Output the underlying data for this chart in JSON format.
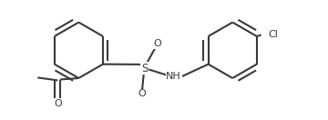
{
  "bg_color": "#ffffff",
  "line_color": "#3a3a3a",
  "line_width": 1.5,
  "font_size": 8.0,
  "figsize": [
    3.6,
    1.32
  ],
  "dpi": 100,
  "r1cx": 2.7,
  "r1cy": 2.5,
  "r1r": 1.0,
  "r2cx": 8.2,
  "r2cy": 2.5,
  "r2r": 1.0,
  "xlim": [
    0,
    11.5
  ],
  "ylim": [
    0,
    4.3
  ]
}
